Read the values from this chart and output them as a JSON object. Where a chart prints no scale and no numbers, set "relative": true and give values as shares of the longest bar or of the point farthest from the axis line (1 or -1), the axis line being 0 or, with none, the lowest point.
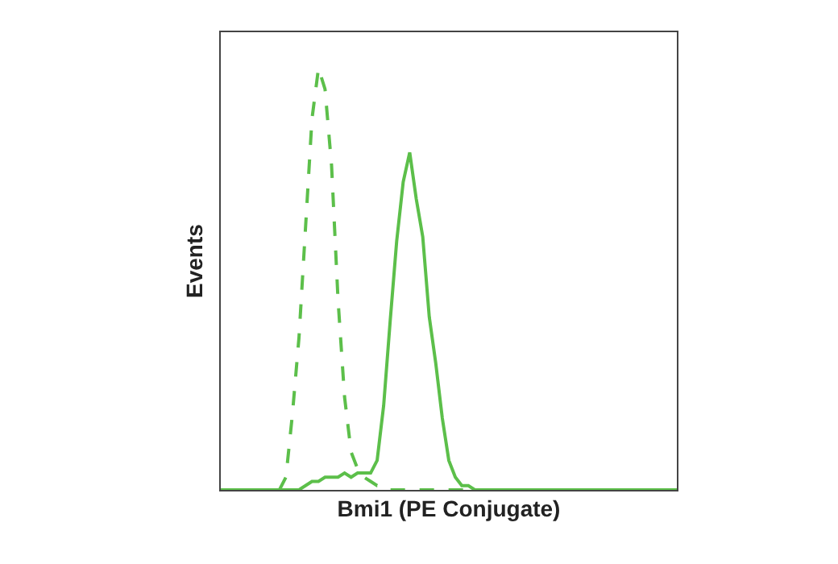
{
  "chart_data": {
    "type": "line",
    "relative": true,
    "xlabel": "Bmi1 (PE Conjugate)",
    "ylabel": "Events",
    "tick_labels": false,
    "marker": "none",
    "categories": [
      null,
      null,
      null,
      null,
      null,
      null,
      null,
      null,
      null,
      null,
      null,
      null,
      null,
      null,
      null,
      null,
      null,
      null,
      null,
      null,
      null,
      null,
      null,
      null,
      null,
      null,
      null,
      null,
      null,
      null,
      null,
      null,
      null,
      null,
      null,
      null,
      null,
      null,
      null,
      null,
      null,
      null,
      null,
      null,
      null,
      null,
      null,
      null,
      null,
      null,
      null,
      null,
      null,
      null,
      null,
      null,
      null,
      null,
      null,
      null,
      null,
      null,
      null,
      null,
      null,
      null,
      null,
      null,
      null,
      null,
      null
    ],
    "series": [
      {
        "color": "#5cbf4a",
        "line_style": "dashed",
        "values": [
          0,
          0,
          0,
          0,
          0,
          0,
          0,
          0,
          0,
          0,
          0.03,
          0.18,
          0.36,
          0.62,
          0.88,
          1,
          0.95,
          0.77,
          0.45,
          0.22,
          0.09,
          0.05,
          0.03,
          0.02,
          0.01,
          0.01,
          0,
          0,
          0,
          0,
          0,
          0,
          0,
          0,
          0,
          0,
          0,
          0,
          0,
          0,
          0,
          0,
          0,
          0,
          0,
          0,
          0,
          0,
          0,
          0,
          0,
          0,
          0,
          0,
          0,
          0,
          0,
          0,
          0,
          0,
          0,
          0,
          0,
          0,
          0,
          0,
          0,
          0,
          0,
          0,
          0
        ]
      },
      {
        "color": "#5cbf4a",
        "line_style": "solid",
        "values": [
          0,
          0,
          0,
          0,
          0,
          0,
          0,
          0,
          0,
          0,
          0,
          0,
          0,
          0.01,
          0.02,
          0.02,
          0.03,
          0.03,
          0.03,
          0.04,
          0.03,
          0.04,
          0.04,
          0.04,
          0.07,
          0.2,
          0.4,
          0.59,
          0.73,
          0.8,
          0.69,
          0.6,
          0.41,
          0.3,
          0.17,
          0.07,
          0.03,
          0.01,
          0.01,
          0,
          0,
          0,
          0,
          0,
          0,
          0,
          0,
          0,
          0,
          0,
          0,
          0,
          0,
          0,
          0,
          0,
          0,
          0,
          0,
          0,
          0,
          0,
          0,
          0,
          0,
          0,
          0,
          0,
          0,
          0,
          0
        ]
      }
    ]
  }
}
